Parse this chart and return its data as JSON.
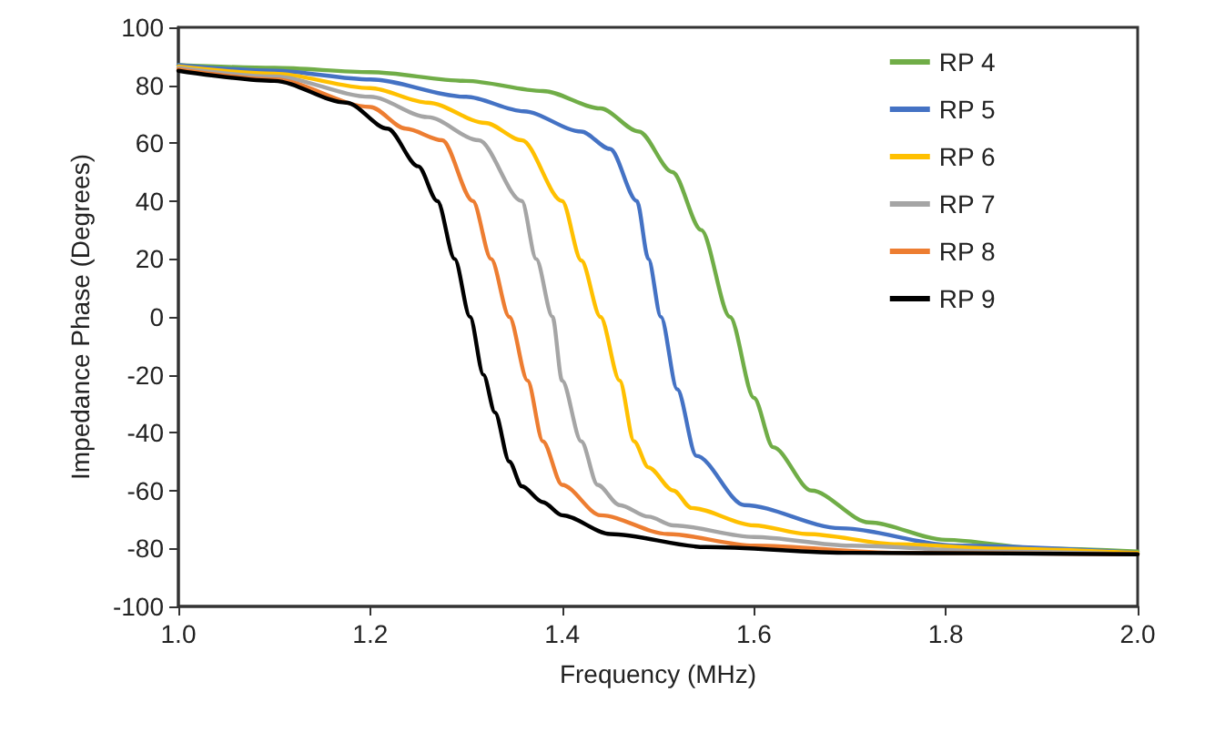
{
  "chart_data": {
    "type": "line",
    "xlabel": "Frequency (MHz)",
    "ylabel": "Impedance Phase (Degrees)",
    "xlim": [
      1.0,
      2.0
    ],
    "xticks": [
      {
        "value": 1.0,
        "label": "1.0"
      },
      1.2,
      1.4,
      1.6,
      1.8,
      {
        "value": 2.0,
        "label": "2.0"
      }
    ],
    "ylim": [
      -100,
      100
    ],
    "yticks": [
      -100,
      -80,
      -60,
      -40,
      -20,
      0,
      20,
      40,
      60,
      80,
      100
    ],
    "grid": false,
    "legend": "top right",
    "marker": "none",
    "line_style": "solid",
    "series": [
      {
        "name": "RP 4",
        "color": "#70ad47",
        "x": [
          1.0,
          1.1,
          1.2,
          1.3,
          1.38,
          1.44,
          1.48,
          1.515,
          1.545,
          1.575,
          1.6,
          1.62,
          1.66,
          1.72,
          1.8,
          1.9,
          2.0
        ],
        "values": [
          87,
          86,
          84.5,
          81.5,
          78,
          72,
          64,
          50,
          30,
          0,
          -28,
          -45,
          -60,
          -71,
          -77,
          -80,
          -81
        ]
      },
      {
        "name": "RP 5",
        "color": "#4472c4",
        "x": [
          1.0,
          1.1,
          1.2,
          1.3,
          1.36,
          1.42,
          1.45,
          1.478,
          1.49,
          1.503,
          1.52,
          1.54,
          1.59,
          1.69,
          1.81,
          2.0
        ],
        "values": [
          87,
          85,
          82,
          76,
          71,
          64,
          58,
          40,
          20,
          0,
          -25,
          -48,
          -65,
          -73,
          -79,
          -81.5
        ]
      },
      {
        "name": "RP 6",
        "color": "#ffc000",
        "x": [
          1.0,
          1.1,
          1.2,
          1.26,
          1.32,
          1.358,
          1.4,
          1.42,
          1.44,
          1.46,
          1.475,
          1.49,
          1.516,
          1.535,
          1.6,
          1.655,
          1.75,
          1.85,
          2.0
        ],
        "values": [
          86.5,
          84,
          79,
          74,
          67,
          61,
          40,
          19.5,
          0,
          -22,
          -43,
          -52,
          -60,
          -66,
          -72,
          -75,
          -78.5,
          -80,
          -81.5
        ]
      },
      {
        "name": "RP 7",
        "color": "#a5a5a5",
        "x": [
          1.0,
          1.1,
          1.2,
          1.26,
          1.313,
          1.358,
          1.373,
          1.39,
          1.4,
          1.42,
          1.437,
          1.46,
          1.49,
          1.516,
          1.6,
          1.7,
          1.85,
          2.0
        ],
        "values": [
          86,
          83,
          76,
          69,
          61,
          40,
          20,
          0,
          -22,
          -43,
          -58,
          -65,
          -69,
          -72,
          -76,
          -79,
          -81,
          -82
        ]
      },
      {
        "name": "RP 8",
        "color": "#ed7d31",
        "x": [
          1.0,
          1.1,
          1.2,
          1.237,
          1.275,
          1.307,
          1.326,
          1.345,
          1.364,
          1.38,
          1.4,
          1.44,
          1.51,
          1.6,
          1.75,
          2.0
        ],
        "values": [
          85.5,
          82,
          72.5,
          65,
          61,
          40,
          20,
          0,
          -22,
          -43,
          -58,
          -68.5,
          -75,
          -79,
          -81.5,
          -82
        ]
      },
      {
        "name": "RP 9",
        "color": "#000000",
        "x": [
          1.0,
          1.1,
          1.175,
          1.218,
          1.25,
          1.27,
          1.288,
          1.304,
          1.318,
          1.33,
          1.345,
          1.358,
          1.38,
          1.4,
          1.45,
          1.55,
          1.7,
          2.0
        ],
        "values": [
          85,
          81.5,
          74,
          65,
          52,
          40,
          20,
          0,
          -20,
          -33,
          -50,
          -58.5,
          -64,
          -68.5,
          -75,
          -79.5,
          -81.5,
          -82
        ]
      }
    ]
  }
}
